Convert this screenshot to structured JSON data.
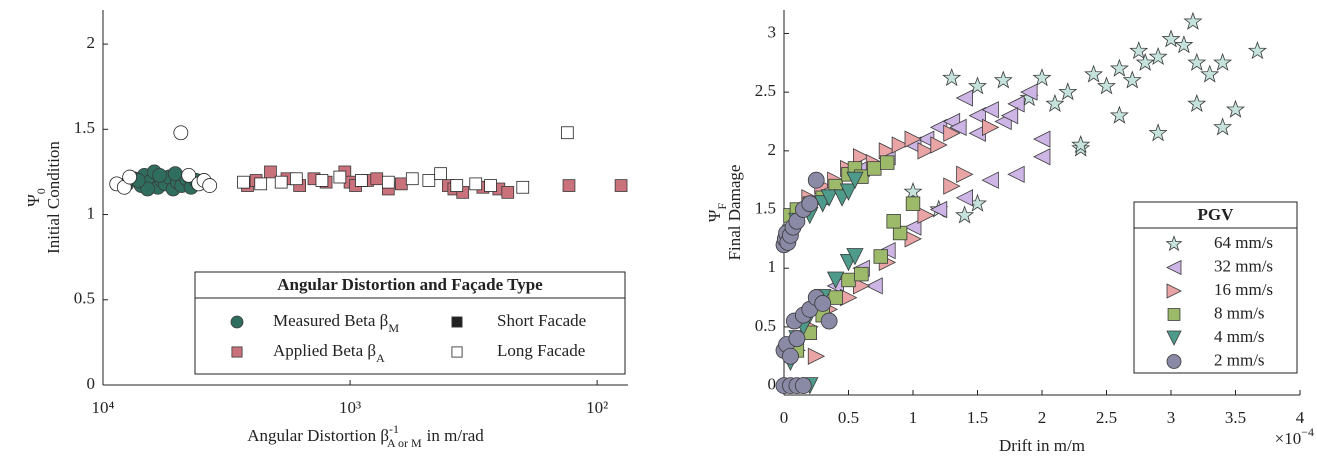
{
  "chart_data": [
    {
      "type": "scatter",
      "x_label": {
        "text": "Angular Distortion β",
        "sup": "-1",
        "sub": "A or M",
        "unit": "in m/rad"
      },
      "y_label": {
        "symbol": "Ψ",
        "sub": "0",
        "text": "Initial Condition"
      },
      "xscale": "log",
      "xlim": [
        10000,
        75
      ],
      "xticks": [
        {
          "value": 10000,
          "label": "10⁴"
        },
        {
          "value": 1000,
          "label": "10³"
        },
        {
          "value": 100,
          "label": "10²"
        }
      ],
      "ylim": [
        0,
        2.2
      ],
      "yticks": [
        0,
        0.5,
        1,
        1.5,
        2
      ],
      "legend": {
        "title": "Angular Distortion and Façade Type",
        "position": "lower right",
        "entries": [
          {
            "label": "Measured Beta β",
            "sub": "M",
            "marker": "circle",
            "color": "#2f6e5e",
            "filled": true
          },
          {
            "label": "Short Facade",
            "marker": "square",
            "color": "#222222",
            "filled": true
          },
          {
            "label": "Applied Beta β",
            "sub": "A",
            "marker": "square",
            "color": "#c9727b",
            "filled": true
          },
          {
            "label": "Long Facade",
            "marker": "square",
            "color": "#ffffff",
            "filled": false
          }
        ]
      },
      "series": [
        {
          "marker": "circle",
          "color": "#2f6e5e",
          "filled": true,
          "x": [
            8000,
            7500,
            7000,
            6800,
            6500,
            6200,
            6000,
            5800,
            5600,
            5400,
            5200,
            5000,
            4800,
            4600,
            4400,
            4200,
            6600,
            5900,
            7200,
            5100
          ],
          "values": [
            1.18,
            1.21,
            1.17,
            1.23,
            1.19,
            1.25,
            1.16,
            1.2,
            1.18,
            1.22,
            1.15,
            1.19,
            1.17,
            1.21,
            1.16,
            1.2,
            1.15,
            1.23,
            1.2,
            1.24
          ]
        },
        {
          "marker": "circle",
          "color": "#ffffff",
          "filled": false,
          "x": [
            8800,
            8200,
            4840,
            4500,
            4100,
            3900,
            3700,
            7800
          ],
          "values": [
            1.18,
            1.16,
            1.48,
            1.23,
            1.18,
            1.2,
            1.17,
            1.22
          ]
        },
        {
          "marker": "square",
          "color": "#c9727b",
          "filled": true,
          "x": [
            2600,
            2400,
            2100,
            1800,
            1600,
            1400,
            1250,
            1050,
            1000,
            950,
            850,
            780,
            700,
            620,
            400,
            380,
            350,
            290,
            250,
            230,
            130,
            80
          ],
          "values": [
            1.17,
            1.2,
            1.25,
            1.21,
            1.17,
            1.21,
            1.19,
            1.25,
            1.19,
            1.17,
            1.2,
            1.21,
            1.15,
            1.18,
            1.17,
            1.15,
            1.13,
            1.16,
            1.15,
            1.13,
            1.17,
            1.17
          ]
        },
        {
          "marker": "square",
          "color": "#ffffff",
          "filled": false,
          "x": [
            2700,
            2300,
            1900,
            1650,
            1300,
            1100,
            900,
            700,
            560,
            480,
            430,
            370,
            310,
            270,
            200,
            132
          ],
          "values": [
            1.19,
            1.18,
            1.19,
            1.21,
            1.2,
            1.22,
            1.2,
            1.19,
            1.21,
            1.2,
            1.24,
            1.17,
            1.18,
            1.17,
            1.16,
            1.48
          ]
        }
      ]
    },
    {
      "type": "scatter",
      "x_label": {
        "text": "Drift in m/m"
      },
      "x_exponent": {
        "base": "×10",
        "power": "−4"
      },
      "y_label": {
        "symbol": "Ψ",
        "sub": "F",
        "text": "Final Damage"
      },
      "xlim": [
        0,
        4
      ],
      "xticks": [
        0,
        0.5,
        1,
        1.5,
        2,
        2.5,
        3,
        3.5,
        4
      ],
      "ylim": [
        -0.08,
        3.2
      ],
      "yticks": [
        0,
        0.5,
        1,
        1.5,
        2,
        2.5,
        3
      ],
      "legend": {
        "title": "PGV",
        "position": "lower right"
      },
      "series": [
        {
          "name": "64 mm/s",
          "marker": "star",
          "color": "#c6e2dd",
          "filled": true,
          "x": [
            1.3,
            1.5,
            1.7,
            1.9,
            2.0,
            2.1,
            2.2,
            2.3,
            2.4,
            2.5,
            2.6,
            2.7,
            2.75,
            2.8,
            2.9,
            3.0,
            3.1,
            3.17,
            3.2,
            3.3,
            3.4,
            3.5,
            3.67,
            2.3,
            2.6,
            2.9,
            3.2,
            3.4,
            1.0,
            1.2,
            1.4,
            1.5
          ],
          "values": [
            2.62,
            2.55,
            2.6,
            2.45,
            2.62,
            2.4,
            2.5,
            2.02,
            2.65,
            2.55,
            2.7,
            2.6,
            2.85,
            2.75,
            2.8,
            2.95,
            2.9,
            3.1,
            2.75,
            2.65,
            2.75,
            2.35,
            2.85,
            2.05,
            2.3,
            2.15,
            2.4,
            2.2,
            1.65,
            1.5,
            1.45,
            1.55
          ]
        },
        {
          "name": "32 mm/s",
          "marker": "tri-left",
          "color": "#cdb6e6",
          "filled": true,
          "x": [
            0.6,
            0.8,
            1.0,
            1.1,
            1.2,
            1.3,
            1.4,
            1.5,
            1.6,
            1.7,
            1.8,
            1.9,
            2.0,
            1.35,
            1.5,
            1.75,
            0.4,
            0.6,
            0.8,
            1.0,
            1.2,
            1.4,
            1.6,
            1.8,
            2.0,
            0.7
          ],
          "values": [
            1.85,
            1.95,
            2.05,
            2.1,
            2.2,
            2.25,
            2.45,
            2.3,
            2.35,
            2.25,
            2.4,
            2.5,
            2.1,
            2.2,
            2.15,
            2.3,
            0.85,
            1.0,
            1.15,
            1.35,
            1.5,
            1.6,
            1.75,
            1.8,
            1.95,
            0.85
          ]
        },
        {
          "name": "16 mm/s",
          "marker": "tri-right",
          "color": "#e9a4a6",
          "filled": true,
          "x": [
            0.2,
            0.3,
            0.4,
            0.5,
            0.6,
            0.7,
            0.8,
            0.9,
            1.0,
            1.1,
            1.2,
            1.3,
            1.6,
            0.1,
            0.2,
            0.35,
            0.5,
            0.6,
            0.8,
            1.0,
            1.1,
            1.3,
            1.4,
            0.25
          ],
          "values": [
            1.6,
            1.7,
            1.75,
            1.85,
            1.95,
            1.9,
            2.0,
            2.05,
            2.1,
            2.0,
            2.05,
            2.15,
            2.2,
            0.3,
            0.5,
            0.65,
            0.75,
            0.85,
            1.05,
            1.25,
            1.45,
            1.7,
            1.8,
            0.25
          ]
        },
        {
          "name": "8 mm/s",
          "marker": "square",
          "color": "#9dba6a",
          "filled": true,
          "x": [
            0.05,
            0.1,
            0.2,
            0.3,
            0.4,
            0.5,
            0.55,
            0.6,
            0.7,
            0.8,
            0.1,
            0.2,
            0.3,
            0.4,
            0.5,
            0.6,
            0.75,
            0.9,
            1.0,
            0.85
          ],
          "values": [
            1.45,
            1.5,
            1.55,
            1.6,
            1.7,
            1.8,
            1.85,
            1.78,
            1.85,
            1.9,
            0.3,
            0.45,
            0.6,
            0.75,
            0.9,
            0.95,
            1.1,
            1.3,
            1.55,
            1.4
          ]
        },
        {
          "name": "4 mm/s",
          "marker": "tri-down",
          "color": "#4f9b8b",
          "filled": true,
          "x": [
            0.05,
            0.1,
            0.2,
            0.3,
            0.35,
            0.45,
            0.5,
            0.55,
            0.05,
            0.1,
            0.15,
            0.2,
            0.3,
            0.4,
            0.5,
            0.55,
            0.2
          ],
          "values": [
            1.3,
            1.4,
            1.45,
            1.55,
            1.6,
            1.6,
            1.65,
            1.75,
            0.2,
            0.4,
            0.5,
            0.6,
            0.75,
            0.9,
            1.05,
            1.1,
            0.0
          ]
        },
        {
          "name": "2 mm/s",
          "marker": "circle",
          "color": "#8a89a6",
          "filled": true,
          "x": [
            0.0,
            0.01,
            0.02,
            0.03,
            0.05,
            0.07,
            0.1,
            0.15,
            0.2,
            0.25,
            0.0,
            0.02,
            0.05,
            0.08,
            0.1,
            0.15,
            0.2,
            0.25,
            0.3,
            0.35,
            0.0,
            0.05,
            0.1,
            0.15
          ],
          "values": [
            1.2,
            1.25,
            1.3,
            1.22,
            1.28,
            1.35,
            1.4,
            1.5,
            1.55,
            1.75,
            0.3,
            0.35,
            0.25,
            0.55,
            0.4,
            0.6,
            0.65,
            0.75,
            0.7,
            0.55,
            0.0,
            0.0,
            0.0,
            0.0
          ]
        }
      ]
    }
  ]
}
